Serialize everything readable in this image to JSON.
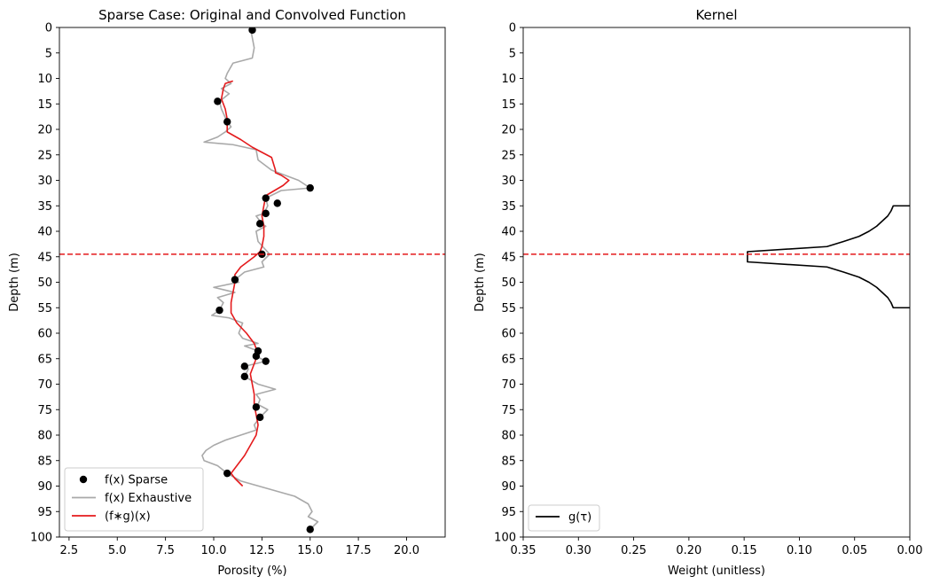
{
  "chart_data": [
    {
      "type": "line",
      "title": "Sparse Case: Original and Convolved Function",
      "xlabel": "Porosity (%)",
      "ylabel": "Depth (m)",
      "xlim": [
        2,
        22
      ],
      "ylim": [
        100,
        0
      ],
      "y_inverted": true,
      "x_ticks": [
        2.5,
        5.0,
        7.5,
        10.0,
        12.5,
        15.0,
        17.5,
        20.0
      ],
      "x_tick_labels": [
        "2.5",
        "5.0",
        "7.5",
        "10.0",
        "12.5",
        "15.0",
        "17.5",
        "20.0"
      ],
      "y_ticks": [
        0,
        5,
        10,
        15,
        20,
        25,
        30,
        35,
        40,
        45,
        50,
        55,
        60,
        65,
        70,
        75,
        80,
        85,
        90,
        95,
        100
      ],
      "y_tick_labels": [
        "0",
        "5",
        "10",
        "15",
        "20",
        "25",
        "30",
        "35",
        "40",
        "45",
        "50",
        "55",
        "60",
        "65",
        "70",
        "75",
        "80",
        "85",
        "90",
        "95",
        "100"
      ],
      "legend": "lower-left",
      "grid": false,
      "reference_line": {
        "depth": 44.5,
        "color": "#e41a1c",
        "style": "dashed"
      },
      "series": [
        {
          "name": "f(x) Sparse",
          "kind": "scatter",
          "color": "#000000",
          "points": [
            [
              12.0,
              0.5
            ],
            [
              10.2,
              14.5
            ],
            [
              10.7,
              18.5
            ],
            [
              15.0,
              31.5
            ],
            [
              12.7,
              33.5
            ],
            [
              13.3,
              34.5
            ],
            [
              12.7,
              36.5
            ],
            [
              12.4,
              38.5
            ],
            [
              12.5,
              44.5
            ],
            [
              11.1,
              49.5
            ],
            [
              10.3,
              55.5
            ],
            [
              12.3,
              63.5
            ],
            [
              12.2,
              64.5
            ],
            [
              12.7,
              65.5
            ],
            [
              11.6,
              66.5
            ],
            [
              11.6,
              68.5
            ],
            [
              12.2,
              74.5
            ],
            [
              12.4,
              76.5
            ],
            [
              10.7,
              87.5
            ],
            [
              15.0,
              98.5
            ]
          ]
        },
        {
          "name": "f(x) Exhaustive",
          "kind": "line",
          "color": "#a9a9a9",
          "points": [
            [
              11.9,
              0
            ],
            [
              12.0,
              2
            ],
            [
              12.1,
              4
            ],
            [
              12.0,
              6
            ],
            [
              11.0,
              7
            ],
            [
              10.7,
              9
            ],
            [
              10.6,
              10
            ],
            [
              10.9,
              11
            ],
            [
              10.4,
              12
            ],
            [
              10.8,
              13
            ],
            [
              10.3,
              14.5
            ],
            [
              10.4,
              16
            ],
            [
              10.7,
              18.5
            ],
            [
              10.9,
              19.5
            ],
            [
              10.6,
              20.5
            ],
            [
              10.2,
              21.5
            ],
            [
              9.5,
              22.5
            ],
            [
              11.0,
              23
            ],
            [
              12.2,
              24
            ],
            [
              12.3,
              26
            ],
            [
              13.0,
              28
            ],
            [
              14.4,
              30
            ],
            [
              15.0,
              31.5
            ],
            [
              13.5,
              32
            ],
            [
              12.7,
              33.5
            ],
            [
              12.8,
              35
            ],
            [
              12.6,
              36.5
            ],
            [
              12.2,
              37
            ],
            [
              12.5,
              38.5
            ],
            [
              12.7,
              39
            ],
            [
              12.2,
              40
            ],
            [
              12.3,
              42
            ],
            [
              12.9,
              44.5
            ],
            [
              12.5,
              46
            ],
            [
              12.6,
              47
            ],
            [
              11.6,
              48
            ],
            [
              11.1,
              49.5
            ],
            [
              11.3,
              50
            ],
            [
              10.0,
              51
            ],
            [
              11.1,
              52
            ],
            [
              10.2,
              53
            ],
            [
              10.5,
              54
            ],
            [
              10.3,
              55.5
            ],
            [
              10.1,
              56
            ],
            [
              9.9,
              56.5
            ],
            [
              10.8,
              57
            ],
            [
              11.5,
              58
            ],
            [
              11.3,
              60
            ],
            [
              11.5,
              61
            ],
            [
              12.3,
              62
            ],
            [
              11.6,
              62.5
            ],
            [
              12.3,
              63.5
            ],
            [
              12.2,
              64.5
            ],
            [
              12.7,
              65.5
            ],
            [
              11.6,
              66.5
            ],
            [
              11.8,
              67
            ],
            [
              11.6,
              68.5
            ],
            [
              12.3,
              70
            ],
            [
              13.2,
              71
            ],
            [
              12.2,
              72
            ],
            [
              12.4,
              73
            ],
            [
              12.3,
              74
            ],
            [
              12.8,
              75
            ],
            [
              12.4,
              76.5
            ],
            [
              12.1,
              78
            ],
            [
              12.2,
              79
            ],
            [
              11.4,
              80
            ],
            [
              10.6,
              81
            ],
            [
              10.0,
              82
            ],
            [
              9.6,
              83
            ],
            [
              9.4,
              84
            ],
            [
              9.5,
              85
            ],
            [
              10.2,
              86
            ],
            [
              10.7,
              87.5
            ],
            [
              11.4,
              89
            ],
            [
              14.2,
              92
            ],
            [
              14.9,
              93.5
            ],
            [
              15.1,
              95
            ],
            [
              14.9,
              96
            ],
            [
              15.4,
              97
            ],
            [
              15.0,
              98.5
            ]
          ]
        },
        {
          "name": "(f∗g)(x)",
          "kind": "line",
          "color": "#e41a1c",
          "points": [
            [
              11.0,
              10.5
            ],
            [
              10.6,
              11
            ],
            [
              10.5,
              12
            ],
            [
              10.4,
              14
            ],
            [
              10.6,
              16
            ],
            [
              10.7,
              18
            ],
            [
              10.7,
              20
            ],
            [
              10.7,
              20.5
            ],
            [
              11.4,
              22
            ],
            [
              12.0,
              23.5
            ],
            [
              13.0,
              25.5
            ],
            [
              13.2,
              28
            ],
            [
              13.2,
              28.5
            ],
            [
              13.5,
              29
            ],
            [
              13.9,
              30
            ],
            [
              13.6,
              31
            ],
            [
              12.7,
              33
            ],
            [
              12.6,
              35
            ],
            [
              12.5,
              37
            ],
            [
              12.6,
              39
            ],
            [
              12.6,
              41
            ],
            [
              12.5,
              43
            ],
            [
              12.4,
              44
            ],
            [
              12.1,
              45
            ],
            [
              11.4,
              47
            ],
            [
              11.1,
              48.5
            ],
            [
              11.1,
              50
            ],
            [
              11.0,
              52
            ],
            [
              10.9,
              54
            ],
            [
              10.9,
              56
            ],
            [
              11.2,
              58
            ],
            [
              11.7,
              60
            ],
            [
              12.1,
              62
            ],
            [
              12.3,
              64
            ],
            [
              12.1,
              66
            ],
            [
              11.9,
              68
            ],
            [
              12.0,
              70
            ],
            [
              12.1,
              72
            ],
            [
              12.1,
              74
            ],
            [
              12.2,
              76
            ],
            [
              12.3,
              78
            ],
            [
              12.2,
              80
            ],
            [
              11.9,
              82
            ],
            [
              11.6,
              84
            ],
            [
              11.2,
              86
            ],
            [
              10.9,
              87.5
            ],
            [
              11.1,
              88.5
            ],
            [
              11.5,
              90
            ]
          ]
        }
      ]
    },
    {
      "type": "line",
      "title": "Kernel",
      "xlabel": "Weight (unitless)",
      "ylabel": "Depth (m)",
      "xlim": [
        0.35,
        0.0
      ],
      "x_inverted": true,
      "ylim": [
        100,
        0
      ],
      "y_inverted": true,
      "x_ticks": [
        0.35,
        0.3,
        0.25,
        0.2,
        0.15,
        0.1,
        0.05,
        0.0
      ],
      "x_tick_labels": [
        "0.35",
        "0.30",
        "0.25",
        "0.20",
        "0.15",
        "0.10",
        "0.05",
        "0.00"
      ],
      "y_ticks": [
        0,
        5,
        10,
        15,
        20,
        25,
        30,
        35,
        40,
        45,
        50,
        55,
        60,
        65,
        70,
        75,
        80,
        85,
        90,
        95,
        100
      ],
      "y_tick_labels": [
        "0",
        "5",
        "10",
        "15",
        "20",
        "25",
        "30",
        "35",
        "40",
        "45",
        "50",
        "55",
        "60",
        "65",
        "70",
        "75",
        "80",
        "85",
        "90",
        "95",
        "100"
      ],
      "legend": "lower-left",
      "grid": false,
      "reference_line": {
        "depth": 44.5,
        "color": "#e41a1c",
        "style": "dashed"
      },
      "series": [
        {
          "name": "g(τ)",
          "kind": "line",
          "color": "#000000",
          "points": [
            [
              0.0,
              35
            ],
            [
              0.015,
              35
            ],
            [
              0.017,
              36
            ],
            [
              0.02,
              37
            ],
            [
              0.025,
              38
            ],
            [
              0.03,
              39
            ],
            [
              0.037,
              40
            ],
            [
              0.046,
              41
            ],
            [
              0.06,
              42
            ],
            [
              0.075,
              43
            ],
            [
              0.147,
              44
            ],
            [
              0.147,
              46
            ],
            [
              0.075,
              47
            ],
            [
              0.06,
              48
            ],
            [
              0.046,
              49
            ],
            [
              0.037,
              50
            ],
            [
              0.03,
              51
            ],
            [
              0.025,
              52
            ],
            [
              0.02,
              53
            ],
            [
              0.017,
              54
            ],
            [
              0.015,
              55
            ],
            [
              0.0,
              55
            ]
          ]
        }
      ]
    }
  ]
}
